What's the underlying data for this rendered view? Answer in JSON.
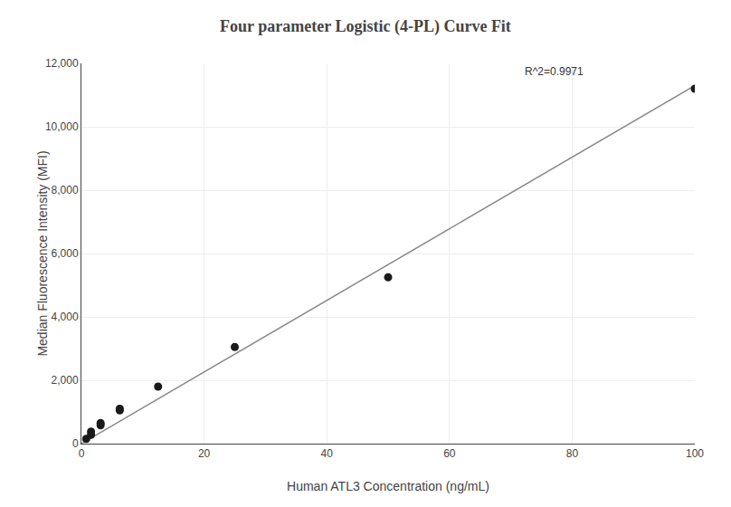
{
  "chart_data": {
    "type": "scatter",
    "title": "Four parameter Logistic (4-PL) Curve Fit",
    "xlabel": "Human ATL3 Concentration (ng/mL)",
    "ylabel": "Median Fluorescence Intensity (MFI)",
    "series": [
      {
        "type": "line",
        "color": "#888888",
        "line_style": "solid",
        "x": [
          0,
          100
        ],
        "values": [
          0,
          11300
        ]
      },
      {
        "type": "scatter",
        "color": "#1a1a1a",
        "marker": "circle",
        "x": [
          0.781,
          1.563,
          1.563,
          3.125,
          3.125,
          6.25,
          6.25,
          12.5,
          25.0,
          50.0,
          100.0
        ],
        "values": [
          150,
          280,
          380,
          580,
          650,
          1050,
          1100,
          1800,
          3050,
          5250,
          11200
        ]
      }
    ],
    "annotations": [
      {
        "text": "R^2=0.9971",
        "x": 72,
        "y": 11500
      }
    ],
    "xlim": [
      0,
      100
    ],
    "ylim": [
      0,
      12000
    ],
    "xticks": [
      0,
      20,
      40,
      60,
      80,
      100
    ],
    "yticks": [
      0,
      {
        "value": 2000,
        "label": "2,000"
      },
      {
        "value": 4000,
        "label": "4,000"
      },
      {
        "value": 6000,
        "label": "6,000"
      },
      {
        "value": 8000,
        "label": "8,000"
      },
      {
        "value": 10000,
        "label": "10,000"
      },
      {
        "value": 12000,
        "label": "12,000"
      }
    ],
    "grid": true
  }
}
